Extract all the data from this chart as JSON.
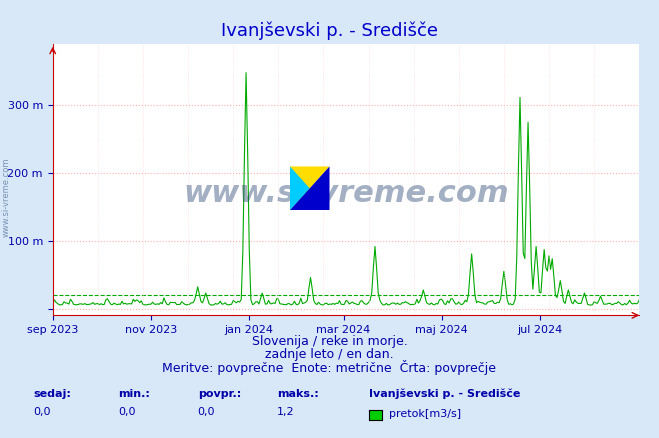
{
  "title": "Ivanjševski p. - Središče",
  "ylabel": "",
  "xlabel": "",
  "bg_color": "#d8e8f8",
  "plot_bg_color": "#ffffff",
  "line_color": "#00aa00",
  "avg_line_color": "#00aa00",
  "grid_color_major": "#ff9999",
  "grid_color_minor": "#ffcccc",
  "ytick_labels": [
    "",
    "100 m",
    "200 m",
    "300 m"
  ],
  "ytick_positions": [
    0,
    100,
    200,
    300
  ],
  "ylim": [
    -10,
    390
  ],
  "title_color": "#0000cc",
  "title_fontsize": 13,
  "footer_line1": "Slovenija / reke in morje.",
  "footer_line2": "zadnje leto / en dan.",
  "footer_line3": "Meritve: povprečne  Enote: metrične  Črta: povprečje",
  "footer_color": "#0000aa",
  "footer_fontsize": 9,
  "stat_labels": [
    "sedaj:",
    "min.:",
    "povpr.:",
    "maks.:"
  ],
  "stat_values": [
    "0,0",
    "0,0",
    "0,0",
    "1,2"
  ],
  "legend_station": "Ivanjševski p. - Središče",
  "legend_label": "pretok[m3/s]",
  "legend_color": "#00cc00",
  "stat_color": "#0000aa",
  "watermark": "www.si-vreme.com",
  "watermark_color": "#1a3a6a",
  "avg_value": 20,
  "x_labels": [
    "sep 2023",
    "nov 2023",
    "jan 2024",
    "mar 2024",
    "maj 2024",
    "jul 2024"
  ],
  "x_label_color": "#0000aa",
  "axis_color": "#cc0000"
}
